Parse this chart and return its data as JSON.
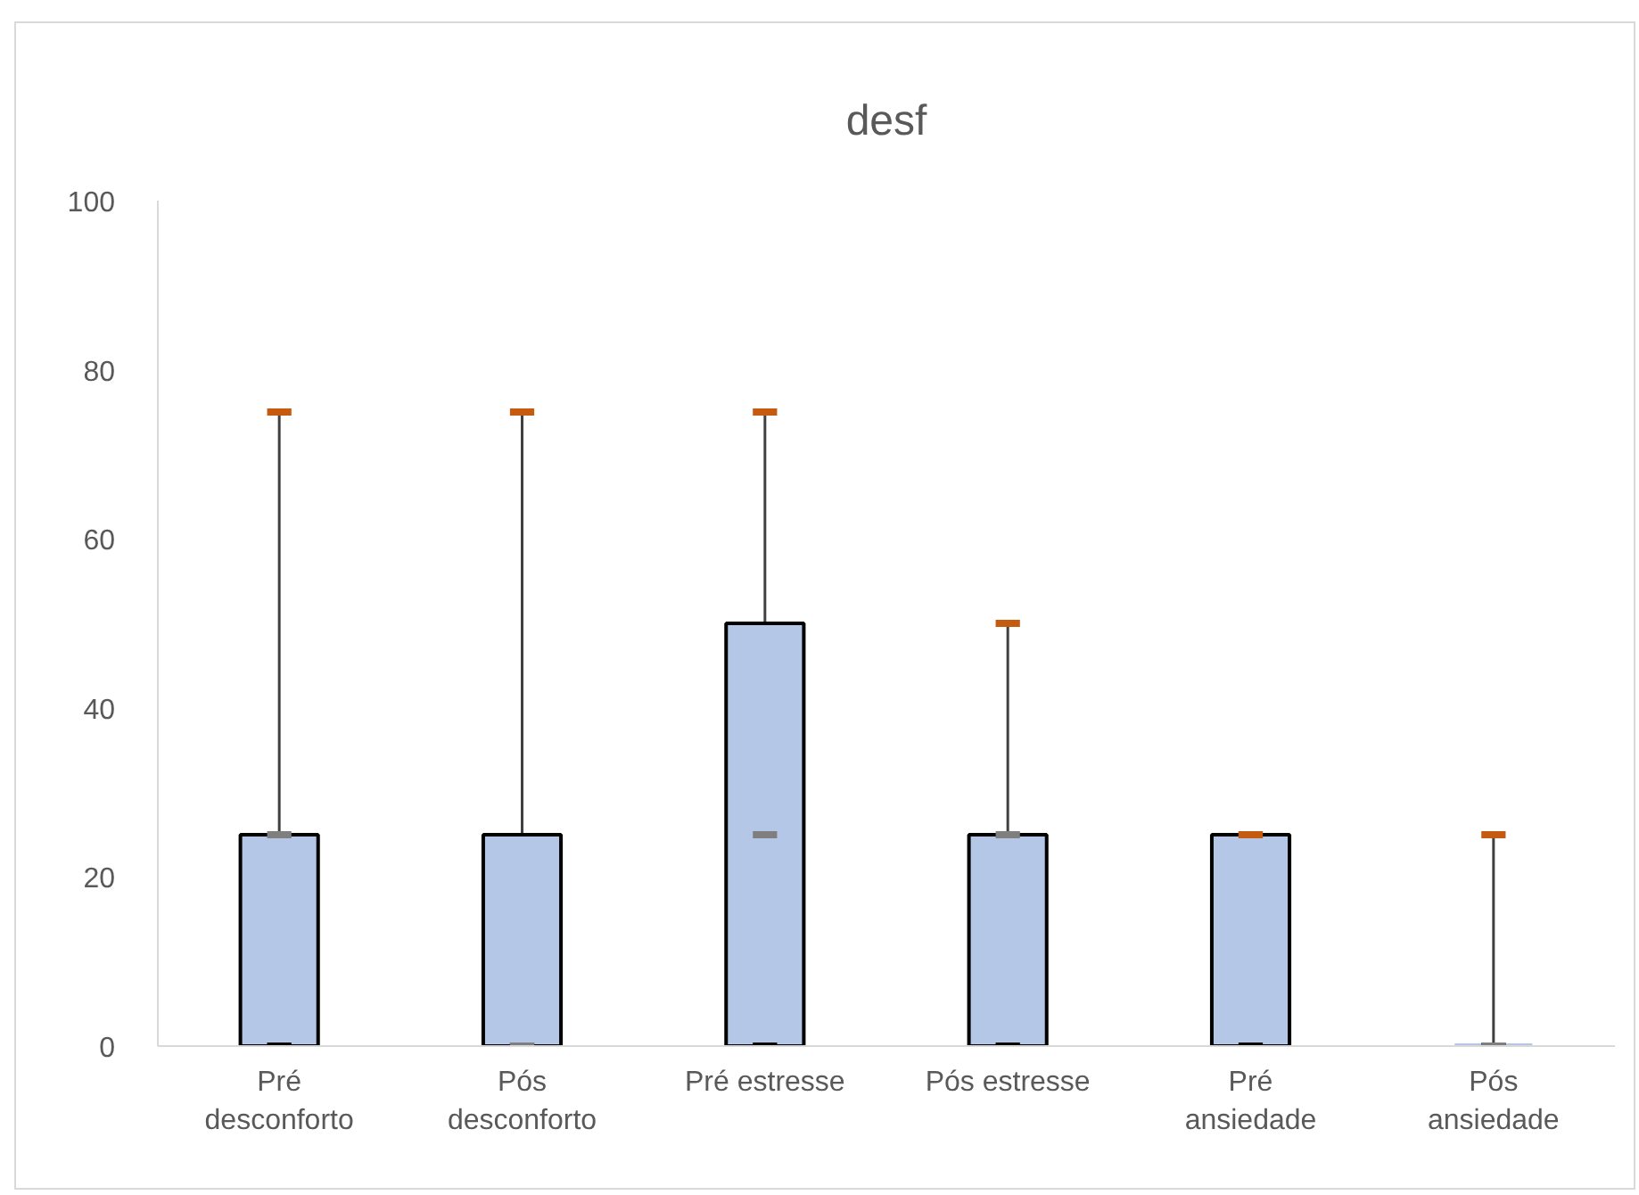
{
  "chart_data": {
    "type": "box",
    "title": "desf",
    "categories": [
      "Pré desconforto",
      "Pós desconforto",
      "Pré estresse",
      "Pós estresse",
      "Pré ansiedade",
      "Pós ansiedade"
    ],
    "series": [
      {
        "color": "#b4c7e7",
        "boxes": [
          {
            "low": 0,
            "q1": 0,
            "median": 25,
            "q3": 25,
            "high": 75
          },
          {
            "low": 0,
            "q1": 0,
            "median": 0,
            "q3": 25,
            "high": 75
          },
          {
            "low": 0,
            "q1": 0,
            "median": 25,
            "q3": 50,
            "high": 75
          },
          {
            "low": 0,
            "q1": 0,
            "median": 25,
            "q3": 25,
            "high": 50
          },
          {
            "low": 0,
            "q1": 0,
            "median": 25,
            "q3": 25,
            "high": 25
          },
          {
            "low": 0,
            "q1": 0,
            "median": 0,
            "q3": 0,
            "high": 25
          }
        ]
      }
    ],
    "ylim": [
      0,
      100
    ],
    "yticks": [
      0,
      20,
      40,
      60,
      80,
      100
    ]
  }
}
